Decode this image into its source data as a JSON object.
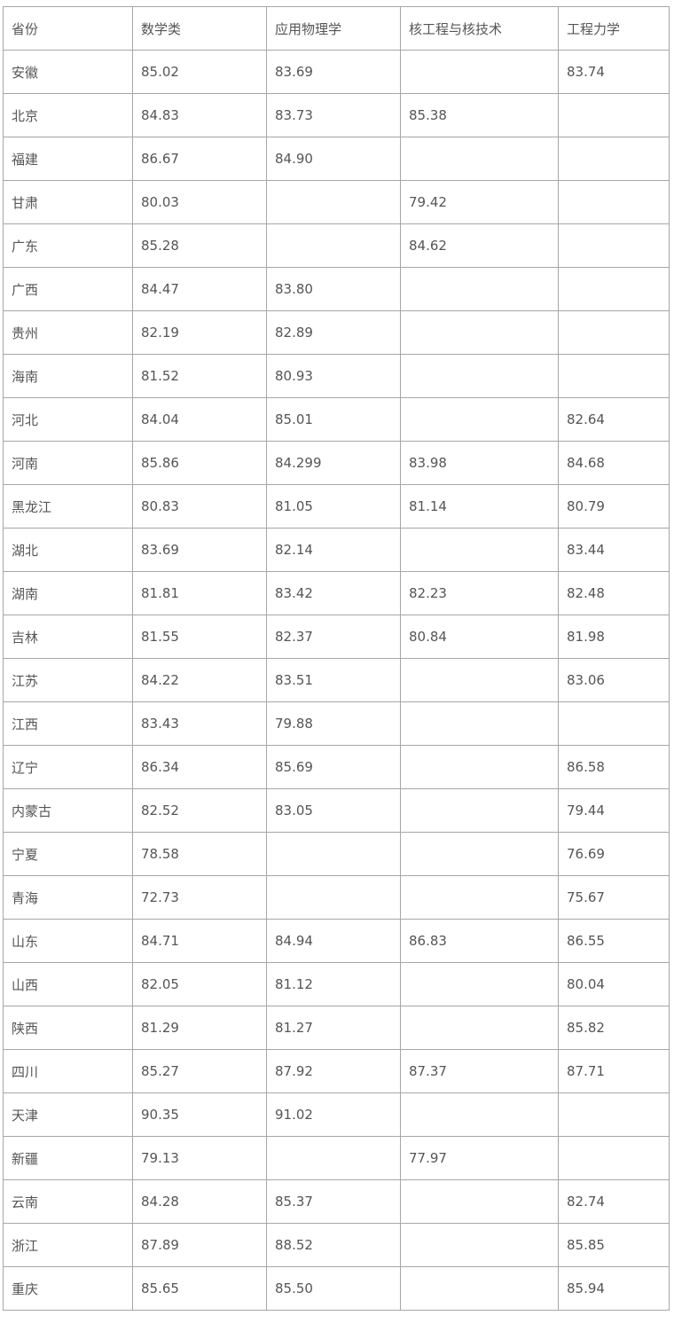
{
  "table": {
    "headers": [
      "省份",
      "数学类",
      "应用物理学",
      "核工程与核技术",
      "工程力学"
    ],
    "rows": [
      [
        "安徽",
        "85.02",
        "83.69",
        "",
        "83.74"
      ],
      [
        "北京",
        "84.83",
        "83.73",
        "85.38",
        ""
      ],
      [
        "福建",
        "86.67",
        "84.90",
        "",
        ""
      ],
      [
        "甘肃",
        "80.03",
        "",
        "79.42",
        ""
      ],
      [
        "广东",
        "85.28",
        "",
        "84.62",
        ""
      ],
      [
        "广西",
        "84.47",
        "83.80",
        "",
        ""
      ],
      [
        "贵州",
        "82.19",
        "82.89",
        "",
        ""
      ],
      [
        "海南",
        "81.52",
        "80.93",
        "",
        ""
      ],
      [
        "河北",
        "84.04",
        "85.01",
        "",
        "82.64"
      ],
      [
        "河南",
        "85.86",
        "84.299",
        "83.98",
        "84.68"
      ],
      [
        "黑龙江",
        "80.83",
        "81.05",
        "81.14",
        "80.79"
      ],
      [
        "湖北",
        "83.69",
        "82.14",
        "",
        "83.44"
      ],
      [
        "湖南",
        "81.81",
        "83.42",
        "82.23",
        "82.48"
      ],
      [
        "吉林",
        "81.55",
        "82.37",
        "80.84",
        "81.98"
      ],
      [
        "江苏",
        "84.22",
        "83.51",
        "",
        "83.06"
      ],
      [
        "江西",
        "83.43",
        "79.88",
        "",
        ""
      ],
      [
        "辽宁",
        "86.34",
        "85.69",
        "",
        "86.58"
      ],
      [
        "内蒙古",
        "82.52",
        "83.05",
        "",
        "79.44"
      ],
      [
        "宁夏",
        "78.58",
        "",
        "",
        "76.69"
      ],
      [
        "青海",
        "72.73",
        "",
        "",
        "75.67"
      ],
      [
        "山东",
        "84.71",
        "84.94",
        "86.83",
        "86.55"
      ],
      [
        "山西",
        "82.05",
        "81.12",
        "",
        "80.04"
      ],
      [
        "陕西",
        "81.29",
        "81.27",
        "",
        "85.82"
      ],
      [
        "四川",
        "85.27",
        "87.92",
        "87.37",
        "87.71"
      ],
      [
        "天津",
        "90.35",
        "91.02",
        "",
        ""
      ],
      [
        "新疆",
        "79.13",
        "",
        "77.97",
        ""
      ],
      [
        "云南",
        "84.28",
        "85.37",
        "",
        "82.74"
      ],
      [
        "浙江",
        "87.89",
        "88.52",
        "",
        "85.85"
      ],
      [
        "重庆",
        "85.65",
        "85.50",
        "",
        "85.94"
      ]
    ]
  }
}
